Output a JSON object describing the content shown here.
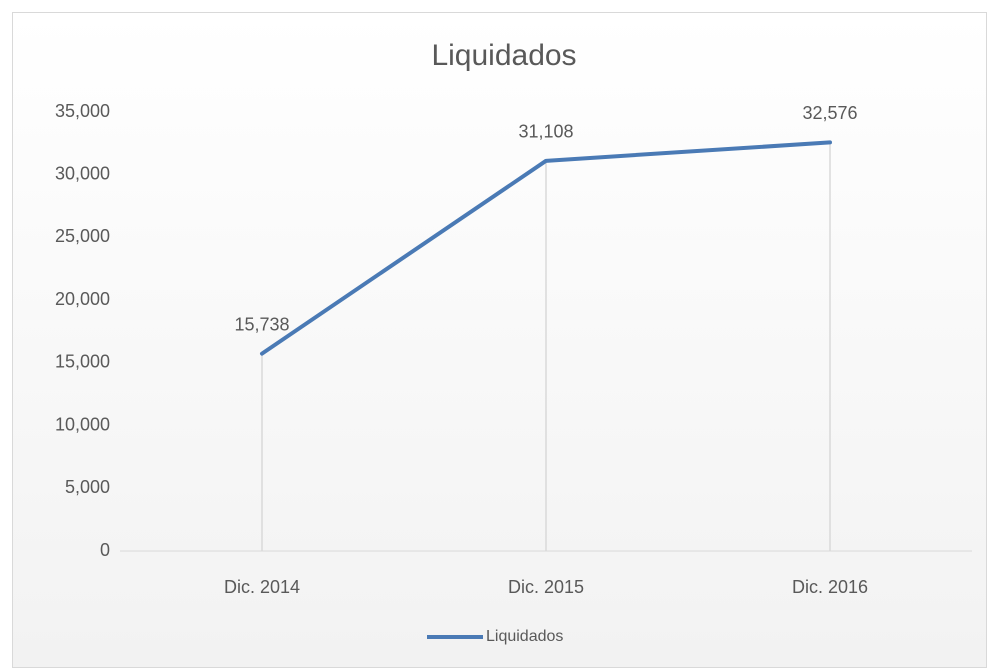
{
  "chart_data": {
    "type": "line",
    "title": "Liquidados",
    "categories": [
      "Dic. 2014",
      "Dic. 2015",
      "Dic. 2016"
    ],
    "series": [
      {
        "name": "Liquidados",
        "color": "#4a7ab5",
        "values": [
          15738,
          31108,
          32576
        ],
        "value_labels": [
          "15,738",
          "31,108",
          "32,576"
        ]
      }
    ],
    "ylim": [
      0,
      35000
    ],
    "yticks": [
      0,
      {
        "value": 5000,
        "label": "5,000"
      },
      {
        "value": 10000,
        "label": "10,000"
      },
      {
        "value": 15000,
        "label": "15,000"
      },
      {
        "value": 20000,
        "label": "20,000"
      },
      {
        "value": 25000,
        "label": "25,000"
      },
      {
        "value": 30000,
        "label": "30,000"
      },
      {
        "value": 35000,
        "label": "35,000"
      }
    ],
    "drop_lines": true,
    "legend": "bottom"
  }
}
